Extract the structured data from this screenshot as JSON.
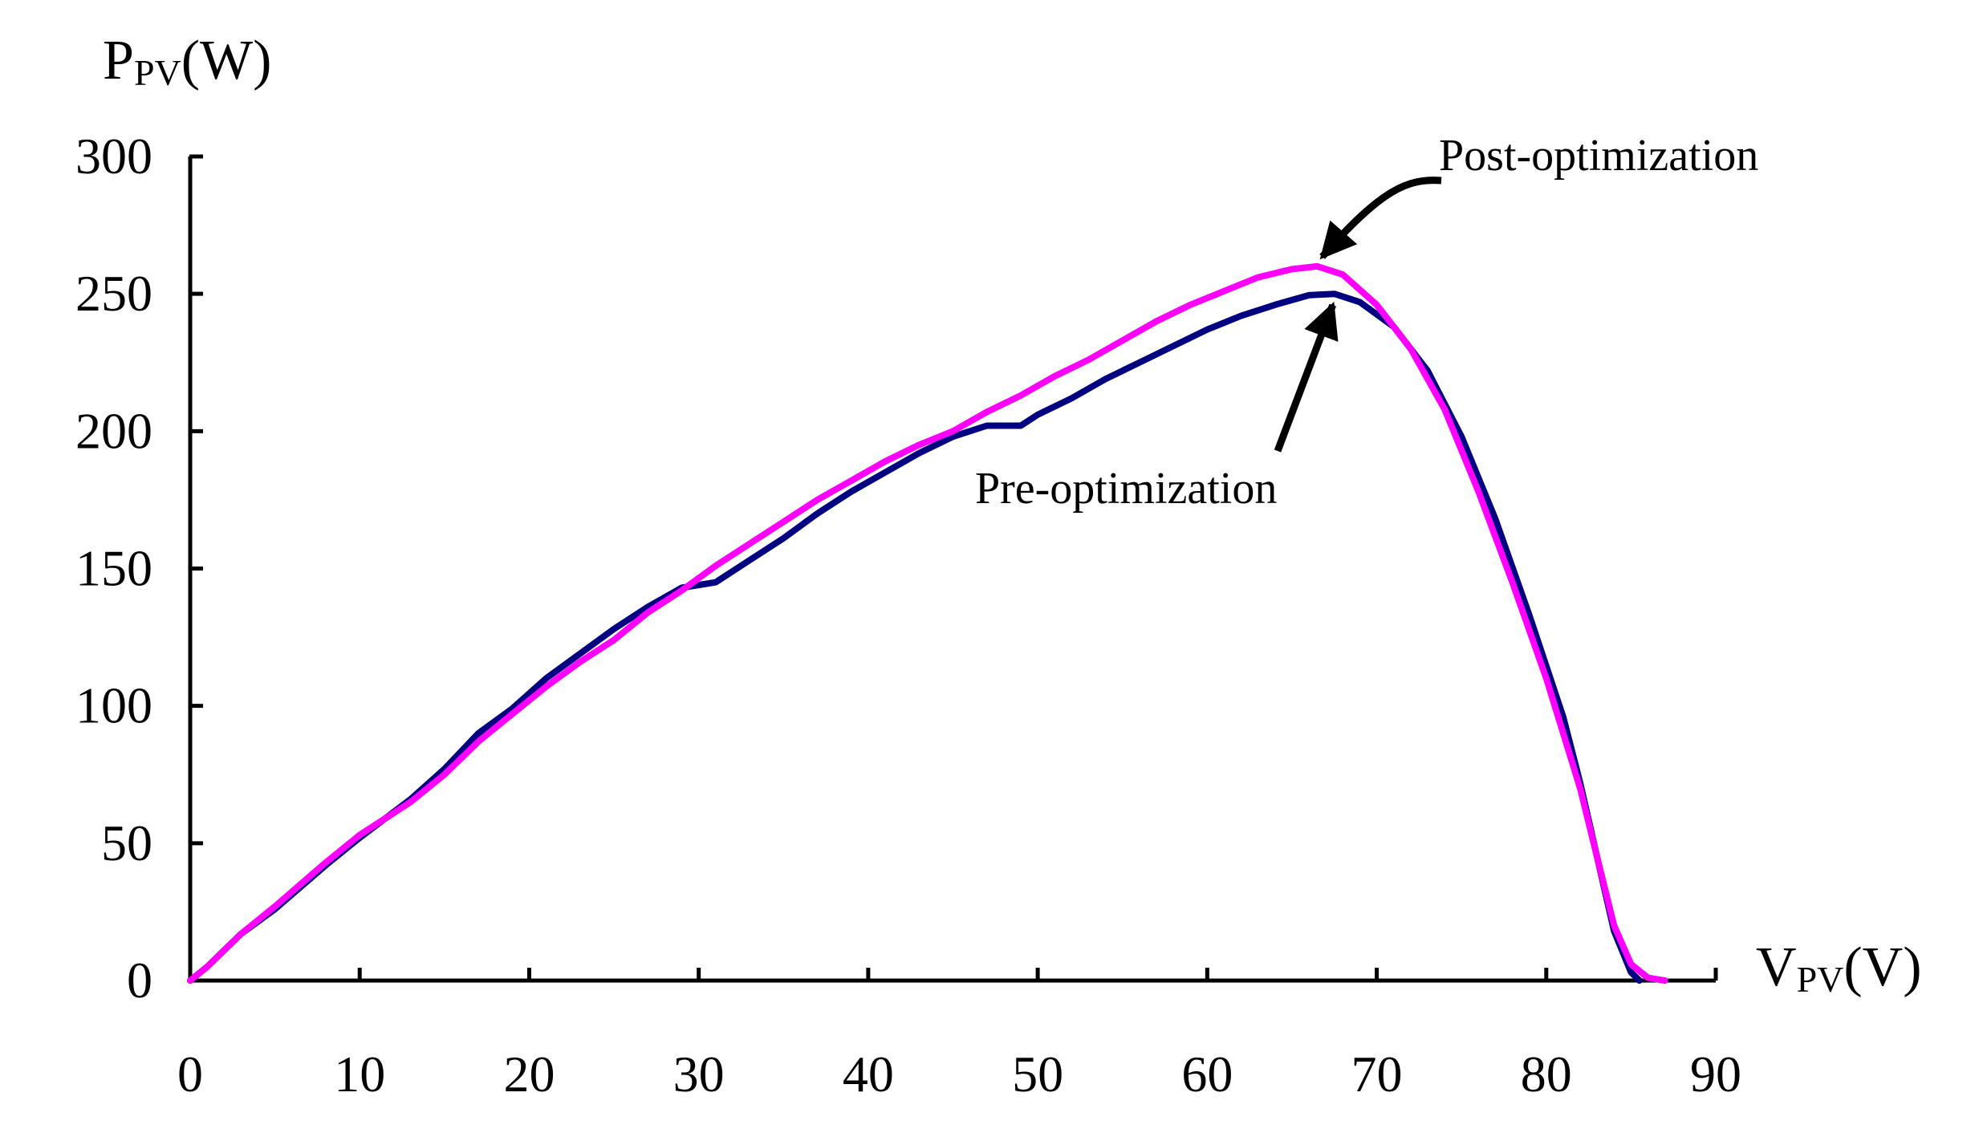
{
  "chart_data": {
    "type": "line",
    "title": "",
    "xlabel": {
      "main": "V",
      "sub": "PV",
      "unit": "(V)"
    },
    "ylabel": {
      "main": "P",
      "sub": "PV",
      "unit": "(W)"
    },
    "xlim": [
      0,
      90
    ],
    "ylim": [
      0,
      300
    ],
    "xticks": [
      0,
      10,
      20,
      30,
      40,
      50,
      60,
      70,
      80,
      90
    ],
    "yticks": [
      0,
      50,
      100,
      150,
      200,
      250,
      300
    ],
    "grid": false,
    "series": [
      {
        "name": "Pre-optimization",
        "color": "#000080",
        "points": [
          [
            0,
            0
          ],
          [
            1,
            5
          ],
          [
            3,
            17
          ],
          [
            5,
            26
          ],
          [
            8,
            42
          ],
          [
            10,
            52
          ],
          [
            13,
            66
          ],
          [
            15,
            77
          ],
          [
            17,
            90
          ],
          [
            19,
            99
          ],
          [
            21,
            110
          ],
          [
            23,
            119
          ],
          [
            25,
            128
          ],
          [
            27,
            136
          ],
          [
            29,
            143
          ],
          [
            31,
            145
          ],
          [
            33,
            153
          ],
          [
            35,
            161
          ],
          [
            37,
            170
          ],
          [
            39,
            178
          ],
          [
            41,
            185
          ],
          [
            43,
            192
          ],
          [
            45,
            198
          ],
          [
            47,
            202
          ],
          [
            49,
            202
          ],
          [
            50,
            206
          ],
          [
            52,
            212
          ],
          [
            54,
            219
          ],
          [
            56,
            225
          ],
          [
            58,
            231
          ],
          [
            60,
            237
          ],
          [
            62,
            242
          ],
          [
            64,
            246
          ],
          [
            66,
            249.5
          ],
          [
            67.5,
            250
          ],
          [
            69,
            247
          ],
          [
            71,
            238
          ],
          [
            73,
            222
          ],
          [
            75,
            198
          ],
          [
            77,
            168
          ],
          [
            79,
            133
          ],
          [
            81,
            96
          ],
          [
            82,
            72
          ],
          [
            83,
            45
          ],
          [
            84,
            18
          ],
          [
            85,
            3
          ],
          [
            85.5,
            0
          ]
        ]
      },
      {
        "name": "Post-optimization",
        "color": "#FF00FF",
        "points": [
          [
            0,
            0
          ],
          [
            1,
            5
          ],
          [
            3,
            17
          ],
          [
            5,
            27
          ],
          [
            8,
            43
          ],
          [
            10,
            53
          ],
          [
            13,
            65
          ],
          [
            15,
            75
          ],
          [
            17,
            87
          ],
          [
            19,
            97
          ],
          [
            21,
            107
          ],
          [
            23,
            116
          ],
          [
            25,
            124
          ],
          [
            27,
            134
          ],
          [
            29,
            142
          ],
          [
            31,
            151
          ],
          [
            33,
            159
          ],
          [
            35,
            167
          ],
          [
            37,
            175
          ],
          [
            39,
            182
          ],
          [
            41,
            189
          ],
          [
            43,
            195
          ],
          [
            45,
            200
          ],
          [
            47,
            207
          ],
          [
            49,
            213
          ],
          [
            51,
            220
          ],
          [
            53,
            226
          ],
          [
            55,
            233
          ],
          [
            57,
            240
          ],
          [
            59,
            246
          ],
          [
            61,
            251
          ],
          [
            63,
            256
          ],
          [
            65,
            259
          ],
          [
            66.5,
            260
          ],
          [
            68,
            257
          ],
          [
            70,
            246
          ],
          [
            72,
            230
          ],
          [
            74,
            208
          ],
          [
            76,
            178
          ],
          [
            78,
            145
          ],
          [
            80,
            110
          ],
          [
            82,
            70
          ],
          [
            83,
            45
          ],
          [
            84,
            20
          ],
          [
            85,
            6
          ],
          [
            86,
            1
          ],
          [
            87,
            0
          ]
        ]
      }
    ],
    "annotations": [
      {
        "text": "Post-optimization",
        "target": [
          66.5,
          260
        ]
      },
      {
        "text": "Pre-optimization",
        "target": [
          67.5,
          250
        ]
      }
    ]
  }
}
